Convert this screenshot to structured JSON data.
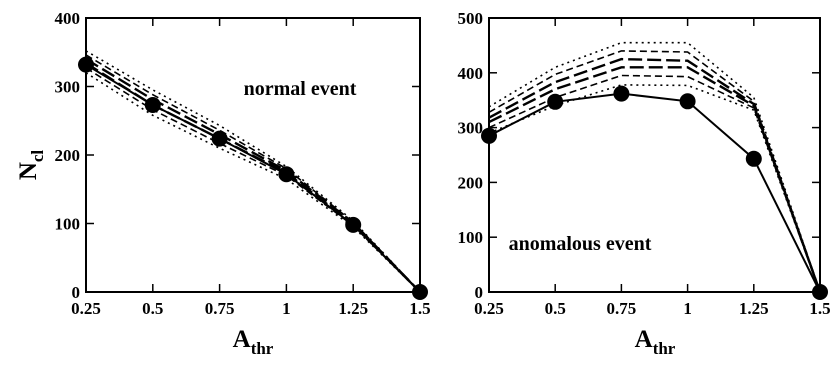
{
  "chart_data": [
    {
      "type": "line",
      "annotation": "normal event",
      "xlabel": "A",
      "xlabel_sub": "thr",
      "ylabel": "N",
      "ylabel_sub": "cl",
      "xlim": [
        0.25,
        1.5
      ],
      "ylim": [
        0,
        400
      ],
      "xticks": [
        "0.25",
        "0.5",
        "0.75",
        "1",
        "1.25",
        "1.5"
      ],
      "yticks": [
        "0",
        "100",
        "200",
        "300",
        "400"
      ],
      "grid": false,
      "legend": "none",
      "x": [
        0.25,
        0.5,
        0.75,
        1.0,
        1.25,
        1.5
      ],
      "series": [
        {
          "style": "solid-marker",
          "values": [
            332,
            273,
            224,
            172,
            98,
            0
          ]
        },
        {
          "style": "dotted",
          "values": [
            352,
            295,
            243,
            183,
            104,
            0
          ]
        },
        {
          "style": "dashed",
          "values": [
            346,
            288,
            236,
            180,
            102,
            0
          ]
        },
        {
          "style": "long-dashed",
          "values": [
            340,
            281,
            230,
            177,
            101,
            0
          ]
        },
        {
          "style": "long-dashed",
          "values": [
            334,
            273,
            224,
            174,
            99,
            0
          ]
        },
        {
          "style": "dashed",
          "values": [
            327,
            266,
            217,
            170,
            97,
            0
          ]
        },
        {
          "style": "dotted",
          "values": [
            320,
            258,
            210,
            165,
            95,
            0
          ]
        }
      ]
    },
    {
      "type": "line",
      "annotation": "anomalous event",
      "xlabel": "A",
      "xlabel_sub": "thr",
      "ylabel": "",
      "xlim": [
        0.25,
        1.5
      ],
      "ylim": [
        0,
        500
      ],
      "xticks": [
        "0.25",
        "0.5",
        "0.75",
        "1",
        "1.25",
        "1.5"
      ],
      "yticks": [
        "0",
        "100",
        "200",
        "300",
        "400",
        "500"
      ],
      "grid": false,
      "legend": "none",
      "x": [
        0.25,
        0.5,
        0.75,
        1.0,
        1.25,
        1.5
      ],
      "series": [
        {
          "style": "solid-marker",
          "values": [
            285,
            347,
            362,
            348,
            243,
            0
          ]
        },
        {
          "style": "dotted",
          "values": [
            338,
            410,
            455,
            455,
            355,
            0
          ]
        },
        {
          "style": "dashed",
          "values": [
            328,
            397,
            440,
            438,
            348,
            0
          ]
        },
        {
          "style": "long-dashed",
          "values": [
            318,
            383,
            425,
            422,
            343,
            0
          ]
        },
        {
          "style": "long-dashed",
          "values": [
            310,
            370,
            410,
            410,
            340,
            0
          ]
        },
        {
          "style": "dashed",
          "values": [
            300,
            355,
            395,
            393,
            336,
            0
          ]
        },
        {
          "style": "dotted",
          "values": [
            290,
            340,
            378,
            377,
            332,
            0
          ]
        }
      ]
    }
  ]
}
